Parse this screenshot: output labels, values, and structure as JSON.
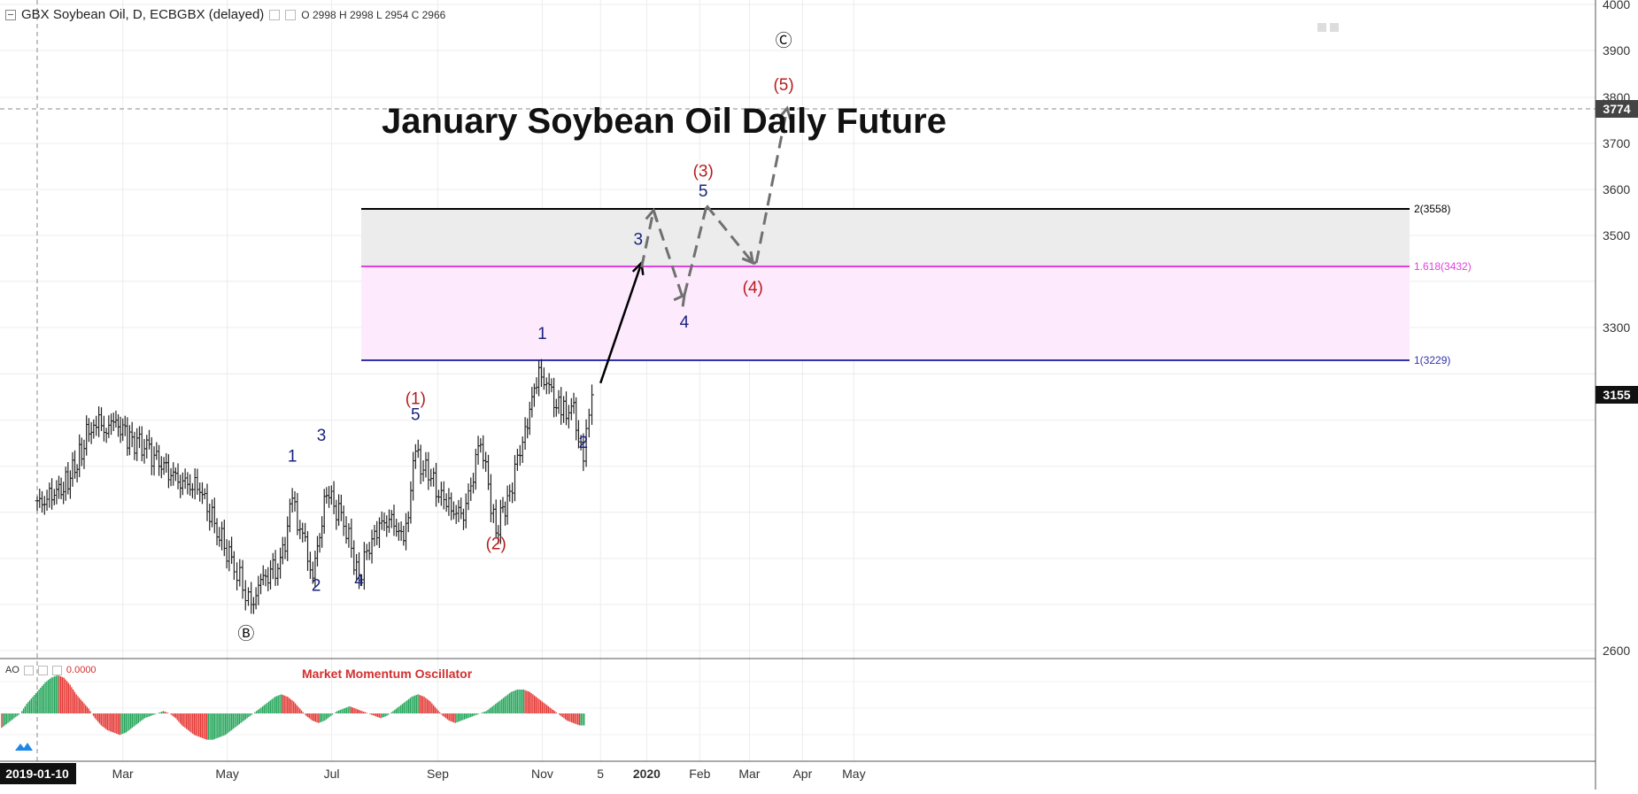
{
  "header": {
    "symbol": "GBX Soybean Oil, D, ECBGBX (delayed)",
    "ohlc": "O 2998  H 2998  L 2954  C 2966"
  },
  "title": "January Soybean Oil Daily Future",
  "oscillator": {
    "name": "AO",
    "value": "0.0000",
    "title": "Market Momentum Oscillator"
  },
  "price_labels": {
    "current": "3155",
    "target": "3774"
  },
  "fib_levels": [
    {
      "label": "2(3558)",
      "value": 3558,
      "color": "#000000"
    },
    {
      "label": "1.618(3432)",
      "value": 3432,
      "color": "#e040e0"
    },
    {
      "label": "1(3229)",
      "value": 3229,
      "color": "#3333aa"
    }
  ],
  "colors": {
    "bar": "#222222",
    "ao_up": "#26a65b",
    "ao_down": "#e53935",
    "wave_blue": "#1a237e",
    "wave_red": "#b71c1c",
    "fib_gray_zone": "#ececec",
    "fib_pink_zone": "#fdeafd"
  },
  "wave_labels": [
    {
      "text": "Ⓑ",
      "date": "2019-05-12",
      "price": 2625,
      "color": "#111111"
    },
    {
      "text": "1",
      "date": "2019-06-08",
      "price": 3010,
      "color": "#1a237e"
    },
    {
      "text": "2",
      "date": "2019-06-22",
      "price": 2730,
      "color": "#1a237e"
    },
    {
      "text": "3",
      "date": "2019-06-25",
      "price": 3055,
      "color": "#1a237e"
    },
    {
      "text": "4",
      "date": "2019-07-17",
      "price": 2740,
      "color": "#1a237e"
    },
    {
      "text": "(1)",
      "date": "2019-08-19",
      "price": 3135,
      "color": "#b71c1c"
    },
    {
      "text": "5",
      "date": "2019-08-19",
      "price": 3100,
      "color": "#1a237e"
    },
    {
      "text": "(2)",
      "date": "2019-10-05",
      "price": 2820,
      "color": "#b71c1c"
    },
    {
      "text": "1",
      "date": "2019-11-01",
      "price": 3275,
      "color": "#1a237e"
    },
    {
      "text": "2",
      "date": "2019-11-25",
      "price": 3040,
      "color": "#1a237e"
    },
    {
      "text": "3",
      "date": "2019-12-27",
      "price": 3480,
      "color": "#1a237e"
    },
    {
      "text": "4",
      "date": "2020-01-23",
      "price": 3300,
      "color": "#1a237e"
    },
    {
      "text": "(3)",
      "date": "2020-02-03",
      "price": 3628,
      "color": "#b71c1c"
    },
    {
      "text": "5",
      "date": "2020-02-03",
      "price": 3585,
      "color": "#1a237e"
    },
    {
      "text": "(4)",
      "date": "2020-03-03",
      "price": 3375,
      "color": "#b71c1c"
    },
    {
      "text": "(5)",
      "date": "2020-03-21",
      "price": 3815,
      "color": "#b71c1c"
    },
    {
      "text": "Ⓒ",
      "date": "2020-03-21",
      "price": 3910,
      "color": "#111111"
    }
  ],
  "projections": {
    "solid": [
      {
        "date": "2019-12-05",
        "price": 3180
      },
      {
        "date": "2019-12-29",
        "price": 3440
      }
    ],
    "dashed": [
      {
        "date": "2019-12-29",
        "price": 3430
      },
      {
        "date": "2020-01-05",
        "price": 3555
      },
      {
        "date": "2020-01-22",
        "price": 3365
      },
      {
        "date": "2020-01-23",
        "price": 3370
      },
      {
        "date": "2020-02-05",
        "price": 3565
      },
      {
        "date": "2020-03-03",
        "price": 3440
      },
      {
        "date": "2020-03-05",
        "price": 3440
      },
      {
        "date": "2020-03-23",
        "price": 3775
      }
    ]
  },
  "chart_data": {
    "type": "line",
    "title": "January Soybean Oil Daily Future",
    "xlabel": "",
    "ylabel": "",
    "x_ticks": [
      "2019-01-10",
      "Mar",
      "May",
      "Jul",
      "Sep",
      "Nov",
      "5",
      "2020",
      "Feb",
      "Mar",
      "Apr",
      "May"
    ],
    "x_range": [
      "2019-01-10",
      "2020-06-01"
    ],
    "y_ticks": [
      2600,
      3300,
      3500,
      3600,
      3700,
      3800,
      3900,
      4000
    ],
    "ylim": [
      2590,
      4000
    ],
    "grid": true,
    "series": [
      {
        "name": "GBX Soybean Oil",
        "x": [
          "2019-01-10",
          "2019-01-20",
          "2019-01-28",
          "2019-02-05",
          "2019-02-12",
          "2019-02-18",
          "2019-02-25",
          "2019-03-05",
          "2019-03-15",
          "2019-03-25",
          "2019-04-05",
          "2019-04-15",
          "2019-04-25",
          "2019-05-05",
          "2019-05-10",
          "2019-05-15",
          "2019-05-22",
          "2019-06-01",
          "2019-06-08",
          "2019-06-14",
          "2019-06-20",
          "2019-06-28",
          "2019-07-08",
          "2019-07-17",
          "2019-07-26",
          "2019-08-05",
          "2019-08-12",
          "2019-08-19",
          "2019-08-28",
          "2019-09-06",
          "2019-09-16",
          "2019-09-26",
          "2019-10-05",
          "2019-10-13",
          "2019-10-22",
          "2019-10-30",
          "2019-11-05",
          "2019-11-12",
          "2019-11-18",
          "2019-11-25",
          "2019-11-30"
        ],
        "values": [
          2915,
          2940,
          2965,
          3035,
          3105,
          3080,
          3095,
          3060,
          3040,
          2995,
          2965,
          2950,
          2860,
          2785,
          2740,
          2700,
          2755,
          2790,
          2920,
          2850,
          2760,
          2945,
          2880,
          2760,
          2860,
          2890,
          2830,
          3025,
          2970,
          2915,
          2890,
          3055,
          2860,
          2945,
          3080,
          3205,
          3170,
          3110,
          3135,
          3020,
          3155
        ]
      }
    ],
    "oscillator_series": {
      "name": "AO",
      "values": [
        -12,
        -8,
        -4,
        0,
        8,
        14,
        20,
        26,
        30,
        32,
        30,
        24,
        16,
        10,
        4,
        -4,
        -10,
        -14,
        -16,
        -18,
        -16,
        -12,
        -8,
        -4,
        -2,
        0,
        2,
        0,
        -4,
        -10,
        -14,
        -18,
        -20,
        -22,
        -22,
        -20,
        -18,
        -14,
        -10,
        -6,
        -2,
        2,
        6,
        10,
        14,
        16,
        14,
        10,
        4,
        -2,
        -6,
        -8,
        -6,
        -2,
        2,
        4,
        6,
        4,
        2,
        0,
        -2,
        -4,
        -2,
        2,
        6,
        10,
        14,
        16,
        14,
        10,
        4,
        -2,
        -6,
        -8,
        -6,
        -4,
        -2,
        0,
        2,
        6,
        10,
        14,
        18,
        20,
        20,
        18,
        14,
        10,
        6,
        2,
        -2,
        -6,
        -8,
        -10,
        -10
      ]
    }
  }
}
